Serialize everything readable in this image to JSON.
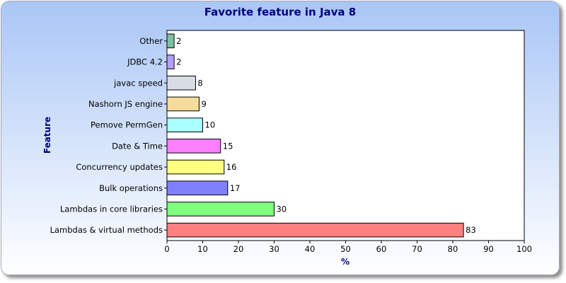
{
  "chart_data": {
    "type": "bar",
    "orientation": "horizontal",
    "title": "Favorite feature in Java 8",
    "xlabel": "%",
    "ylabel": "Feature",
    "xlim": [
      0,
      100
    ],
    "x_ticks": [
      0,
      10,
      20,
      30,
      40,
      50,
      60,
      70,
      80,
      90,
      100
    ],
    "grid": false,
    "legend": "none",
    "background_gradient": [
      "#a9c6f6",
      "#ffffff"
    ],
    "categories": [
      "Lambdas & virtual methods",
      "Lambdas in core libraries",
      "Bulk operations",
      "Concurrency updates",
      "Date & Time",
      "Pemove PermGen",
      "Nashorn JS engine",
      "javac speed",
      "JDBC 4.2",
      "Other"
    ],
    "values": [
      83,
      30,
      17,
      16,
      15,
      10,
      9,
      8,
      2,
      2
    ],
    "colors": [
      "#ff8080",
      "#80ff80",
      "#8080ff",
      "#ffff80",
      "#ff80ff",
      "#aaffff",
      "#f5dc9a",
      "#d8dce4",
      "#b4a0f8",
      "#7fc0a0"
    ]
  }
}
